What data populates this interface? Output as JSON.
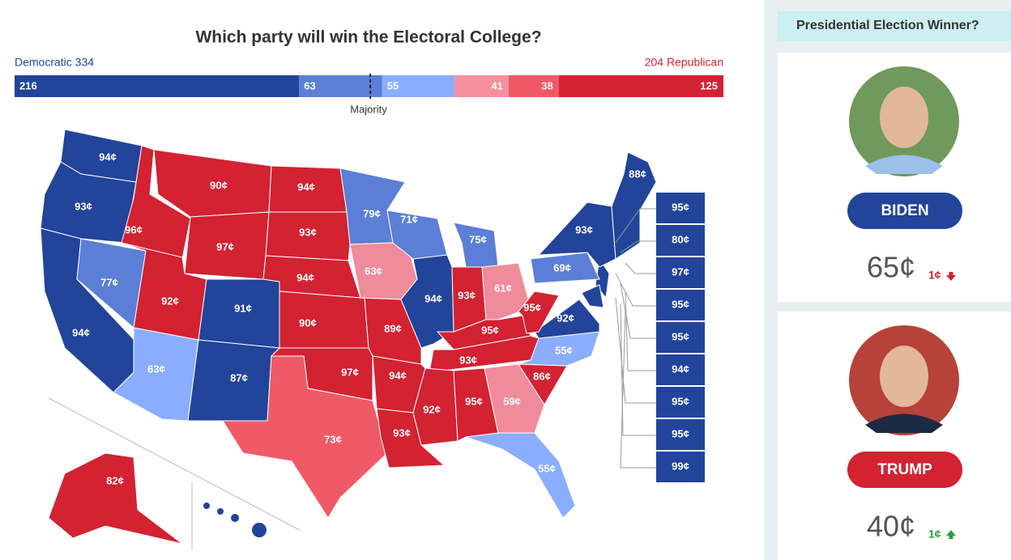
{
  "title": "Which party will win the Electoral College?",
  "democratic_label": "Democratic 334",
  "republican_label": "204 Republican",
  "majority_label": "Majority",
  "electoral_bar": [
    {
      "value": 216,
      "color": "#22449a"
    },
    {
      "value": 63,
      "color": "#5b7fd6"
    },
    {
      "value": 55,
      "color": "#8aadff"
    },
    {
      "value": 41,
      "color": "#f6909c"
    },
    {
      "value": 38,
      "color": "#f25766"
    },
    {
      "value": 125,
      "color": "#d32232"
    }
  ],
  "map_labels": [
    "94¢",
    "93¢",
    "94¢",
    "77¢",
    "96¢",
    "90¢",
    "97¢",
    "92¢",
    "91¢",
    "63¢",
    "87¢",
    "94¢",
    "93¢",
    "94¢",
    "90¢",
    "97¢",
    "73¢",
    "79¢",
    "63¢",
    "89¢",
    "94¢",
    "93¢",
    "71¢",
    "94¢",
    "75¢",
    "93¢",
    "61¢",
    "95¢",
    "93¢",
    "92¢",
    "95¢",
    "59¢",
    "55¢",
    "86¢",
    "55¢",
    "92¢",
    "95¢",
    "69¢",
    "93¢",
    "88¢",
    "82¢"
  ],
  "side_labels": [
    "95¢",
    "80¢",
    "97¢",
    "95¢",
    "95¢",
    "94¢",
    "95¢",
    "95¢",
    "99¢"
  ],
  "sidebar": {
    "title": "Presidential Election Winner?",
    "candidates": [
      {
        "name": "BIDEN",
        "price": "65¢",
        "change": "1¢",
        "color": "#22449a",
        "change_color": "#d32232"
      },
      {
        "name": "TRUMP",
        "price": "40¢",
        "change": "1¢",
        "color": "#d32232",
        "change_color": "#2e9e3e"
      }
    ]
  }
}
